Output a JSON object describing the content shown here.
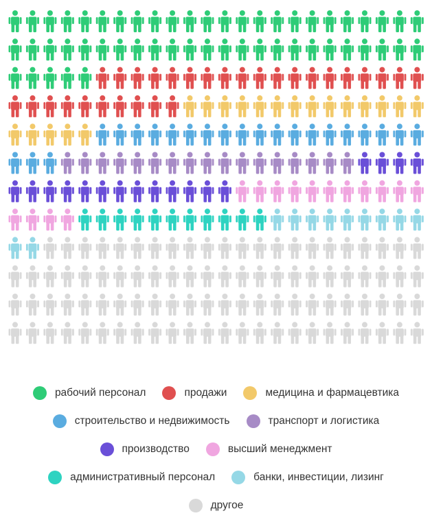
{
  "chart_data": {
    "type": "waffle",
    "columns": 24,
    "rows": 12,
    "series": [
      {
        "name": "рабочий персонал",
        "count": 53,
        "color": "#2ecc77"
      },
      {
        "name": "продажи",
        "count": 29,
        "color": "#e05050"
      },
      {
        "name": "медицина и фармацевтика",
        "count": 19,
        "color": "#f2c96a"
      },
      {
        "name": "строительство и недвижимость",
        "count": 22,
        "color": "#5aace0"
      },
      {
        "name": "транспорт и логистика",
        "count": 17,
        "color": "#a78bc6"
      },
      {
        "name": "производство",
        "count": 17,
        "color": "#6a4fd8"
      },
      {
        "name": "высший менеджмент",
        "count": 15,
        "color": "#f0a6e0"
      },
      {
        "name": "административный персонал",
        "count": 11,
        "color": "#2ed3c1"
      },
      {
        "name": "банки, инвестиции, лизинг",
        "count": 11,
        "color": "#95d8e6"
      },
      {
        "name": "другое",
        "count": 94,
        "color": "#d9d9d9"
      }
    ],
    "legend_rows": [
      [
        0,
        1,
        2
      ],
      [
        3,
        4
      ],
      [
        5,
        6
      ],
      [
        7,
        8
      ],
      [
        9
      ]
    ]
  }
}
